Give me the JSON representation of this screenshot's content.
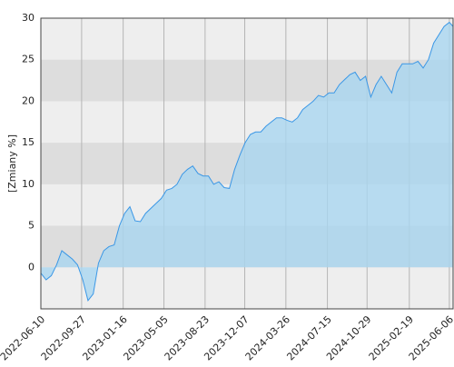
{
  "chart_data": {
    "type": "area",
    "y_label": "[Zmiany %]",
    "x": [
      "2022-06-10",
      "2022-06-24",
      "2022-07-08",
      "2022-07-22",
      "2022-08-05",
      "2022-08-19",
      "2022-09-02",
      "2022-09-16",
      "2022-09-30",
      "2022-10-14",
      "2022-10-28",
      "2022-11-11",
      "2022-11-25",
      "2022-12-09",
      "2022-12-23",
      "2023-01-06",
      "2023-01-20",
      "2023-02-03",
      "2023-02-17",
      "2023-03-03",
      "2023-03-17",
      "2023-03-31",
      "2023-04-14",
      "2023-04-28",
      "2023-05-12",
      "2023-05-26",
      "2023-06-09",
      "2023-06-23",
      "2023-07-07",
      "2023-07-21",
      "2023-08-04",
      "2023-08-18",
      "2023-09-01",
      "2023-09-15",
      "2023-09-29",
      "2023-10-13",
      "2023-10-27",
      "2023-11-10",
      "2023-11-24",
      "2023-12-08",
      "2023-12-22",
      "2024-01-05",
      "2024-01-19",
      "2024-02-02",
      "2024-02-16",
      "2024-03-01",
      "2024-03-15",
      "2024-03-29",
      "2024-04-12",
      "2024-04-26",
      "2024-05-10",
      "2024-05-24",
      "2024-06-07",
      "2024-06-21",
      "2024-07-05",
      "2024-07-19",
      "2024-08-02",
      "2024-08-16",
      "2024-08-30",
      "2024-09-13",
      "2024-09-27",
      "2024-10-11",
      "2024-10-25",
      "2024-11-08",
      "2024-11-22",
      "2024-12-06",
      "2024-12-20",
      "2025-01-03",
      "2025-01-17",
      "2025-01-31",
      "2025-02-14",
      "2025-02-28",
      "2025-03-14",
      "2025-03-28",
      "2025-04-11",
      "2025-04-25",
      "2025-05-09",
      "2025-05-23",
      "2025-06-06",
      "2025-06-16"
    ],
    "series": [
      {
        "color": "#3a97e6",
        "fill": "#a9d6f0",
        "values": [
          -0.7,
          -1.5,
          -1,
          0.3,
          2,
          1.5,
          1,
          0.3,
          -1.5,
          -4,
          -3.2,
          0.5,
          2,
          2.5,
          2.7,
          5,
          6.5,
          7.3,
          5.6,
          5.5,
          6.5,
          7.1,
          7.7,
          8.3,
          9.3,
          9.5,
          10,
          11.2,
          11.8,
          12.2,
          11.3,
          11,
          11,
          10,
          10.3,
          9.6,
          9.5,
          11.8,
          13.5,
          15,
          16,
          16.3,
          16.3,
          17,
          17.5,
          18,
          18,
          17.7,
          17.5,
          18,
          19,
          19.5,
          20,
          20.7,
          20.5,
          21,
          21,
          22,
          22.6,
          23.2,
          23.5,
          22.5,
          23,
          20.5,
          22,
          23,
          22,
          21,
          23.5,
          24.5,
          24.5,
          24.5,
          24.8,
          24,
          25,
          27,
          28,
          29,
          29.5,
          29
        ]
      }
    ],
    "xlim": [
      "2022-06-10",
      "2025-06-16"
    ],
    "xticks": [
      "2022-06-10",
      "2022-09-27",
      "2023-01-16",
      "2023-05-05",
      "2023-08-23",
      "2023-12-07",
      "2024-03-26",
      "2024-07-15",
      "2024-10-29",
      "2025-02-19",
      "2025-06-06"
    ],
    "ylim": [
      -5,
      30
    ],
    "yticks": [
      0,
      5,
      10,
      15,
      20,
      25,
      30
    ],
    "grid": true
  }
}
